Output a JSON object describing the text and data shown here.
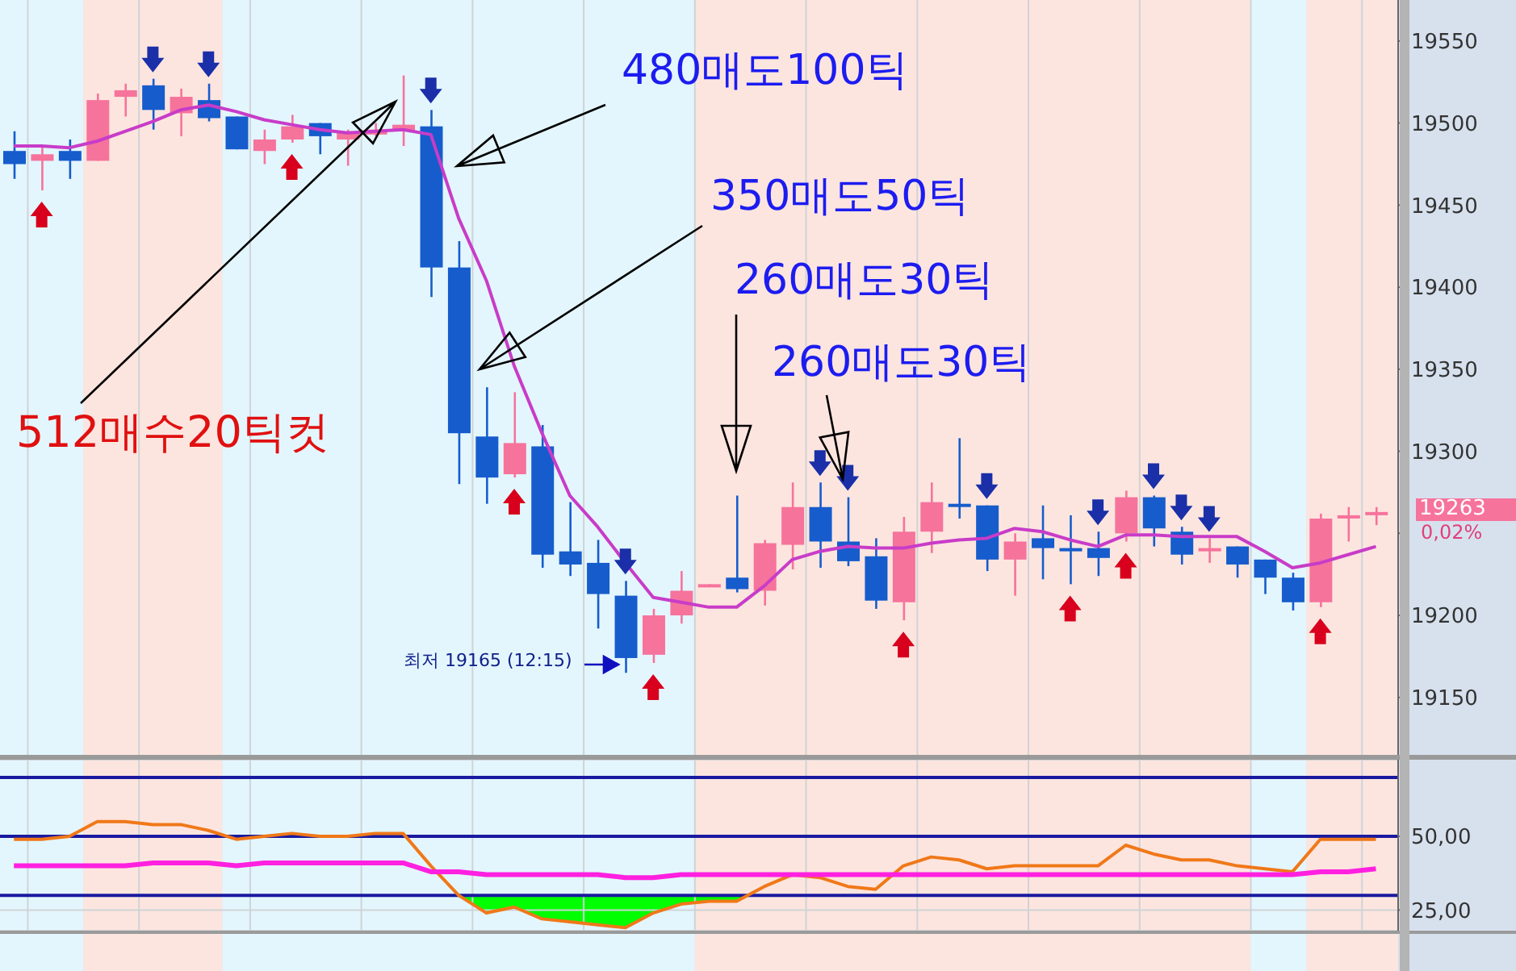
{
  "chart_data": [
    {
      "type": "candlestick",
      "categories": [
        null,
        null,
        null,
        null,
        null,
        null,
        null,
        null,
        null,
        null,
        null,
        null,
        null,
        null,
        null,
        null,
        null,
        null,
        null,
        null,
        null,
        null,
        null,
        null,
        null,
        null,
        null,
        null,
        null,
        null,
        null,
        null,
        null,
        null,
        null,
        null,
        null,
        null,
        null,
        null,
        null,
        null,
        null,
        null,
        null,
        null,
        null,
        null,
        null,
        null
      ],
      "ohlc": [
        [
          19483,
          19495,
          19466,
          19475
        ],
        [
          19477,
          19486,
          19459,
          19481
        ],
        [
          19483,
          19490,
          19466,
          19477
        ],
        [
          19477,
          19518,
          19477,
          19514
        ],
        [
          19516,
          19524,
          19504,
          19520
        ],
        [
          19523,
          19527,
          19496,
          19508
        ],
        [
          19506,
          19521,
          19492,
          19516
        ],
        [
          19514,
          19524,
          19501,
          19503
        ],
        [
          19504,
          19504,
          19484,
          19484
        ],
        [
          19483,
          19496,
          19475,
          19490
        ],
        [
          19490,
          19505,
          19488,
          19498
        ],
        [
          19500,
          19500,
          19481,
          19492
        ],
        [
          19490,
          19496,
          19474,
          19494
        ],
        [
          19493,
          19500,
          19492,
          19496
        ],
        [
          19495,
          19529,
          19486,
          19499
        ],
        [
          19498,
          19508,
          19394,
          19412
        ],
        [
          19412,
          19428,
          19280,
          19311
        ],
        [
          19309,
          19339,
          19268,
          19284
        ],
        [
          19286,
          19336,
          19284,
          19305
        ],
        [
          19303,
          19316,
          19229,
          19237
        ],
        [
          19239,
          19269,
          19224,
          19231
        ],
        [
          19232,
          19246,
          19192,
          19213
        ],
        [
          19212,
          19221,
          19165,
          19174
        ],
        [
          19176,
          19204,
          19171,
          19200
        ],
        [
          19200,
          19227,
          19195,
          19215
        ],
        [
          19218,
          19219,
          19218,
          19219
        ],
        [
          19223,
          19273,
          19214,
          19216
        ],
        [
          19215,
          19246,
          19206,
          19244
        ],
        [
          19243,
          19281,
          19228,
          19266
        ],
        [
          19266,
          19281,
          19229,
          19245
        ],
        [
          19245,
          19272,
          19230,
          19233
        ],
        [
          19236,
          19247,
          19204,
          19209
        ],
        [
          19208,
          19260,
          19197,
          19251
        ],
        [
          19251,
          19281,
          19238,
          19269
        ],
        [
          19268,
          19308,
          19259,
          19267
        ],
        [
          19267,
          19267,
          19227,
          19234
        ],
        [
          19234,
          19250,
          19212,
          19245
        ],
        [
          19247,
          19267,
          19222,
          19241
        ],
        [
          19241,
          19261,
          19219,
          19240
        ],
        [
          19241,
          19251,
          19224,
          19235
        ],
        [
          19250,
          19276,
          19245,
          19272
        ],
        [
          19272,
          19273,
          19242,
          19253
        ],
        [
          19251,
          19254,
          19231,
          19237
        ],
        [
          19240,
          19247,
          19232,
          19241
        ],
        [
          19242,
          19242,
          19223,
          19231
        ],
        [
          19234,
          19234,
          19213,
          19223
        ],
        [
          19223,
          19226,
          19203,
          19208
        ],
        [
          19208,
          19262,
          19205,
          19259
        ],
        [
          19260,
          19266,
          19245,
          19261
        ],
        [
          19262,
          19266,
          19255,
          19263
        ]
      ],
      "series": [
        {
          "type": "line",
          "color": "#c83cc8",
          "values": [
            19486,
            19486,
            19485,
            19489,
            19495,
            19501,
            19508,
            19511,
            19507,
            19502,
            19499,
            19496,
            19494,
            19495,
            19496,
            19493,
            19442,
            19404,
            19352,
            19311,
            19273,
            19254,
            19232,
            19211,
            19208,
            19205,
            19205,
            19218,
            19234,
            19239,
            19242,
            19241,
            19241,
            19244,
            19246,
            19247,
            19253,
            19251,
            19246,
            19242,
            19249,
            19249,
            19248,
            19248,
            19248,
            19239,
            19229,
            19232,
            19237,
            19242
          ]
        }
      ],
      "ylim": [
        19115,
        19575
      ],
      "yticks": [
        19150,
        19200,
        {
          "value": 19250,
          "label": null
        },
        19300,
        19350,
        19400,
        19450,
        19500,
        19550
      ],
      "grid": true,
      "tick_labels": "y",
      "annotations": [
        "480매도100틱",
        "350매도50틱",
        "260매도30틱",
        "260매도30틱",
        "512매수20틱컷",
        "최저 19165 (12:15)",
        "19263",
        "0,02%"
      ]
    },
    {
      "type": "line",
      "categories": [
        null,
        null,
        null,
        null,
        null,
        null,
        null,
        null,
        null,
        null,
        null,
        null,
        null,
        null,
        null,
        null,
        null,
        null,
        null,
        null,
        null,
        null,
        null,
        null,
        null,
        null,
        null,
        null,
        null,
        null,
        null,
        null,
        null,
        null,
        null,
        null,
        null,
        null,
        null,
        null,
        null,
        null,
        null,
        null,
        null,
        null,
        null,
        null,
        null,
        null
      ],
      "series": [
        {
          "color": "#f07818",
          "values": [
            49,
            49,
            50,
            55,
            55,
            54,
            54,
            52,
            49,
            50,
            51,
            50,
            50,
            51,
            51,
            40,
            30,
            24,
            26,
            22,
            21,
            20,
            19,
            24,
            27,
            28,
            28,
            33,
            37,
            36,
            33,
            32,
            40,
            43,
            42,
            39,
            40,
            40,
            40,
            40,
            47,
            44,
            42,
            42,
            40,
            39,
            38,
            49,
            49,
            49
          ]
        },
        {
          "color": "#ff20e0",
          "values": [
            40,
            40,
            40,
            40,
            40,
            41,
            41,
            41,
            40,
            41,
            41,
            41,
            41,
            41,
            41,
            38,
            38,
            37,
            37,
            37,
            37,
            37,
            36,
            36,
            37,
            37,
            37,
            37,
            37,
            37,
            37,
            37,
            37,
            37,
            37,
            37,
            37,
            37,
            37,
            37,
            37,
            37,
            37,
            37,
            37,
            37,
            37,
            38,
            38,
            39
          ]
        }
      ],
      "ylim": [
        18,
        76
      ],
      "yticks": [
        {
          "value": 50,
          "label": "50,00"
        },
        {
          "value": 25,
          "label": "25,00"
        }
      ],
      "grid": true,
      "tick_labels": "y",
      "ref_lines": [
        {
          "axis": "y",
          "value": 70,
          "color": "#1a1aa0"
        },
        {
          "axis": "y",
          "value": 50,
          "color": "#1a1aa0"
        },
        {
          "axis": "y",
          "value": 30,
          "color": "#1a1aa0"
        }
      ]
    }
  ]
}
